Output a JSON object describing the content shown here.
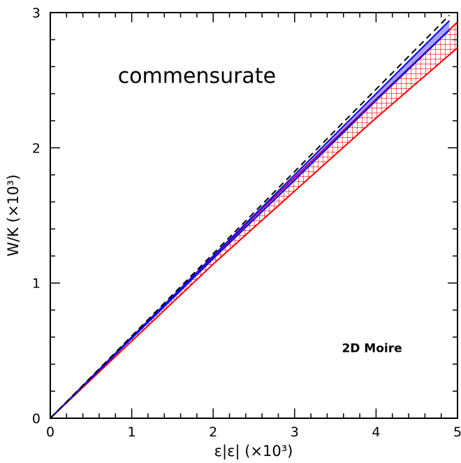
{
  "chart_data": {
    "type": "line",
    "title": "",
    "xlabel": "ε|ε| (×10³)",
    "ylabel": "W/K (×10³)",
    "xlim": [
      0,
      5
    ],
    "ylim": [
      0,
      3
    ],
    "x_ticks": [
      "0",
      "1",
      "2",
      "3",
      "4",
      "5"
    ],
    "y_ticks": [
      "0",
      "1",
      "2",
      "3"
    ],
    "grid": false,
    "series": [
      {
        "style": "dashed",
        "color": "#000000",
        "x": [
          0,
          4.9
        ],
        "y": [
          0,
          2.98
        ]
      },
      {
        "style": "band",
        "color": "#0000ff",
        "x": [
          0,
          1,
          2,
          3,
          4,
          4.9
        ],
        "y_upper": [
          0,
          0.6,
          1.2,
          1.8,
          2.4,
          2.94
        ],
        "y_lower": [
          0,
          0.59,
          1.18,
          1.76,
          2.35,
          2.87
        ]
      },
      {
        "style": "hatched-band",
        "color": "#ff0000",
        "x": [
          0,
          1,
          2,
          2.5,
          3,
          4,
          5
        ],
        "y_upper": [
          0,
          0.6,
          1.19,
          1.49,
          1.78,
          2.36,
          2.93
        ],
        "y_lower": [
          0,
          0.57,
          1.14,
          1.41,
          1.68,
          2.22,
          2.74
        ]
      }
    ],
    "annotations": [
      {
        "text": "commensurate",
        "x": 1.8,
        "y": 2.48,
        "size": "large"
      },
      {
        "text": "2D Moire",
        "x": 3.95,
        "y": 0.49,
        "size": "small"
      }
    ]
  }
}
